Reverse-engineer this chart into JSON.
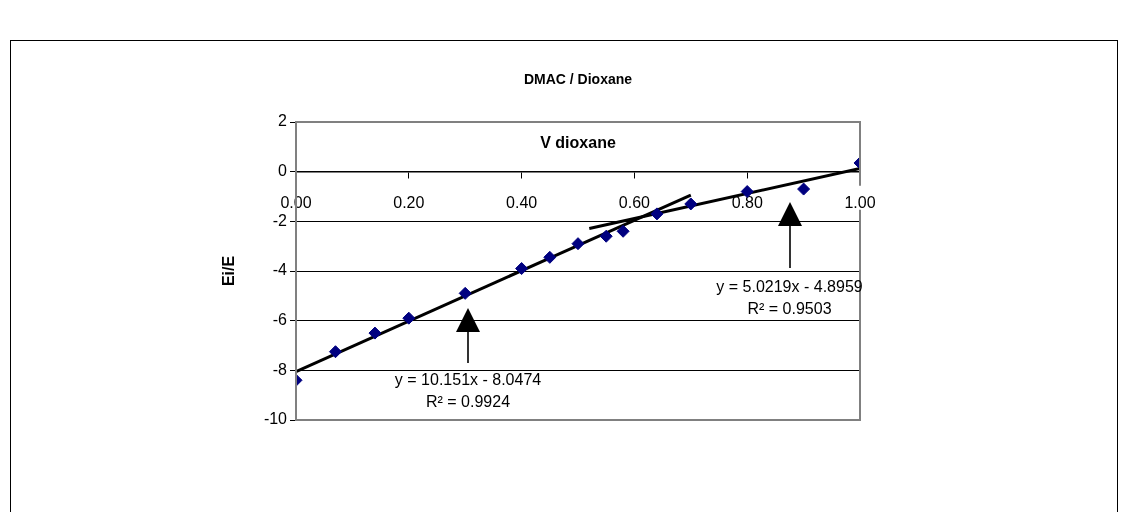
{
  "chart_data": {
    "type": "scatter",
    "title": "DMAC / Dioxane",
    "xlabel": "V dioxane",
    "ylabel": "Ei/E",
    "xlim": [
      0,
      1
    ],
    "xticks": [
      {
        "value": 0,
        "label": "0.00"
      },
      {
        "value": 0.2,
        "label": "0.20"
      },
      {
        "value": 0.4,
        "label": "0.40"
      },
      {
        "value": 0.6,
        "label": "0.60"
      },
      {
        "value": 0.8,
        "label": "0.80"
      },
      {
        "value": 1,
        "label": "1.00"
      }
    ],
    "ylim": [
      -10,
      2
    ],
    "yticks": [
      -10,
      -8,
      -6,
      -4,
      -2,
      0,
      2
    ],
    "grid": "y",
    "legend": false,
    "marker": "diamond",
    "series": [
      {
        "type": "scatter",
        "color": "#000080",
        "x": [
          0,
          0.07,
          0.14,
          0.2,
          0.3,
          0.4,
          0.45,
          0.5,
          0.55,
          0.58,
          0.64,
          0.7,
          0.8,
          0.9,
          1.0
        ],
        "values": [
          -8.4,
          -7.25,
          -6.5,
          -5.9,
          -4.9,
          -3.9,
          -3.45,
          -2.9,
          -2.6,
          -2.4,
          -1.7,
          -1.3,
          -0.8,
          -0.7,
          0.35
        ]
      },
      {
        "type": "line",
        "marker": "none",
        "color": "#000000",
        "x": [
          0,
          0.7
        ],
        "values": [
          -8.05,
          -0.94
        ]
      },
      {
        "type": "line",
        "marker": "none",
        "color": "#000000",
        "x": [
          0.52,
          1.0
        ],
        "values": [
          -2.29,
          0.13
        ]
      }
    ],
    "annotations": [
      "y = 10.151x - 8.0474\nR² = 0.9924",
      "y = 5.0219x - 4.8959\nR² = 0.9503"
    ]
  }
}
